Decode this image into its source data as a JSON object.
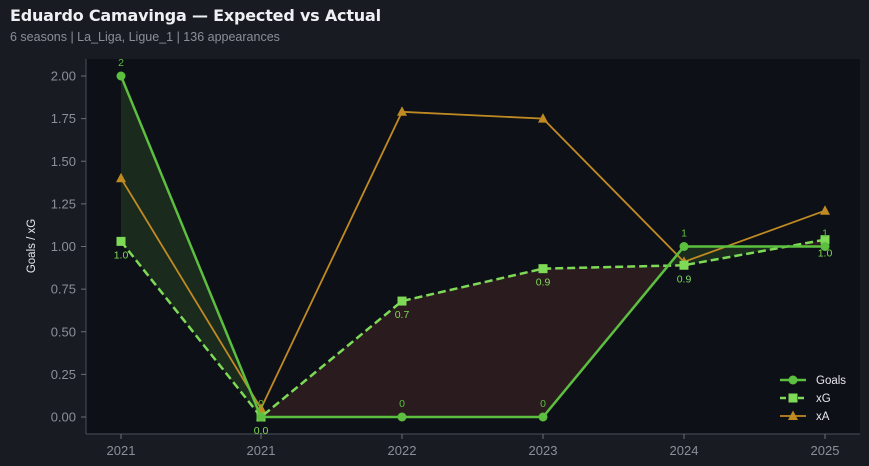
{
  "header": {
    "title": "Eduardo Camavinga — Expected vs Actual",
    "subtitle": "6 seasons | La_Liga, Ligue_1 | 136 appearances"
  },
  "colors": {
    "background": "#181b22",
    "plot_background": "#0d1017",
    "goals": "#5cbf3f",
    "xg": "#7ed957",
    "xa": "#c08a22",
    "over_fill": "#1c2e1e",
    "under_fill": "#2d1d20"
  },
  "chart_data": {
    "type": "line",
    "title": "Eduardo Camavinga — Expected vs Actual",
    "subtitle": "6 seasons | La_Liga, Ligue_1 | 136 appearances",
    "xlabel": "",
    "ylabel": "Goals / xG",
    "categories": [
      "2021",
      "2021",
      "2022",
      "2023",
      "2024",
      "2025"
    ],
    "ylim": [
      -0.08,
      2.1
    ],
    "yticks": [
      "0.00",
      "0.25",
      "0.50",
      "0.75",
      "1.00",
      "1.25",
      "1.50",
      "1.75",
      "2.00"
    ],
    "grid": false,
    "legend_position": "lower right",
    "series": [
      {
        "name": "Goals",
        "values": [
          2,
          0,
          0,
          0,
          1,
          1
        ],
        "labels": [
          "2",
          "0",
          "0",
          "0",
          "1",
          "1"
        ],
        "style": "solid",
        "marker": "circle"
      },
      {
        "name": "xG",
        "values": [
          1.03,
          0.0,
          0.68,
          0.87,
          0.89,
          1.04
        ],
        "labels": [
          "1.0",
          "0.0",
          "0.7",
          "0.9",
          "0.9",
          "1.0"
        ],
        "style": "dashed",
        "marker": "square"
      },
      {
        "name": "xA",
        "values": [
          1.4,
          0.05,
          1.79,
          1.75,
          0.91,
          1.21
        ],
        "style": "solid",
        "marker": "triangle"
      }
    ],
    "annotations": "Green fill where Goals > xG, red fill where Goals < xG"
  },
  "legend": {
    "items": [
      {
        "label": "Goals"
      },
      {
        "label": "xG"
      },
      {
        "label": "xA"
      }
    ]
  }
}
